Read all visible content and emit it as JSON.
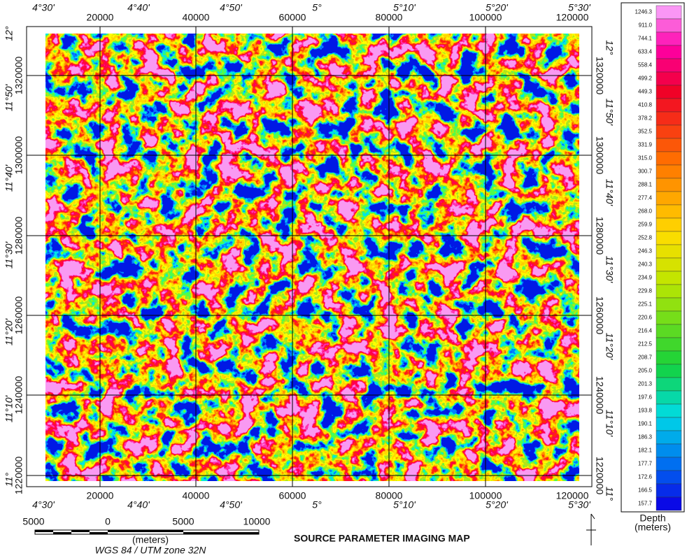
{
  "map": {
    "title": "SOURCE PARAMETER IMAGING MAP",
    "top_degrees": [
      "4°30'",
      "4°40'",
      "4°50'",
      "5°",
      "5°10'",
      "5°20'",
      "5°30'"
    ],
    "top_eastings": [
      "20000",
      "40000",
      "60000",
      "80000",
      "100000",
      "120000"
    ],
    "bottom_degrees": [
      "4°30'",
      "4°40'",
      "4°50'",
      "5°",
      "5°10'",
      "5°20'",
      "5°30'"
    ],
    "bottom_eastings": [
      "20000",
      "40000",
      "60000",
      "80000",
      "100000",
      "120000"
    ],
    "left_degrees": [
      "12°",
      "11°50'",
      "11°40'",
      "11°30'",
      "11°20'",
      "11°10'",
      "11°"
    ],
    "left_northings": [
      "1320000",
      "1300000",
      "1280000",
      "1260000",
      "1240000",
      "1220000"
    ],
    "right_degrees": [
      "12°",
      "11°50'",
      "11°40'",
      "11°30'",
      "11°20'",
      "11°10'",
      "11°"
    ],
    "right_northings": [
      "1320000",
      "1300000",
      "1280000",
      "1260000",
      "1240000",
      "1220000"
    ],
    "scale_labels": [
      "5000",
      "0",
      "5000",
      "10000"
    ],
    "scale_unit": "(meters)",
    "projection": "WGS 84 / UTM zone 32N"
  },
  "legend": {
    "labels": [
      "1246.3",
      "911.0",
      "744.1",
      "633.4",
      "558.4",
      "499.2",
      "449.3",
      "410.8",
      "378.2",
      "352.5",
      "331.9",
      "315.0",
      "300.7",
      "288.1",
      "277.4",
      "268.0",
      "259.9",
      "252.8",
      "246.3",
      "240.3",
      "234.9",
      "229.8",
      "225.1",
      "220.6",
      "216.4",
      "212.5",
      "208.7",
      "205.0",
      "201.3",
      "197.6",
      "193.8",
      "190.1",
      "186.3",
      "182.1",
      "177.7",
      "172.6",
      "166.5",
      "157.7"
    ],
    "title": "Depth",
    "unit": "(meters)"
  }
}
